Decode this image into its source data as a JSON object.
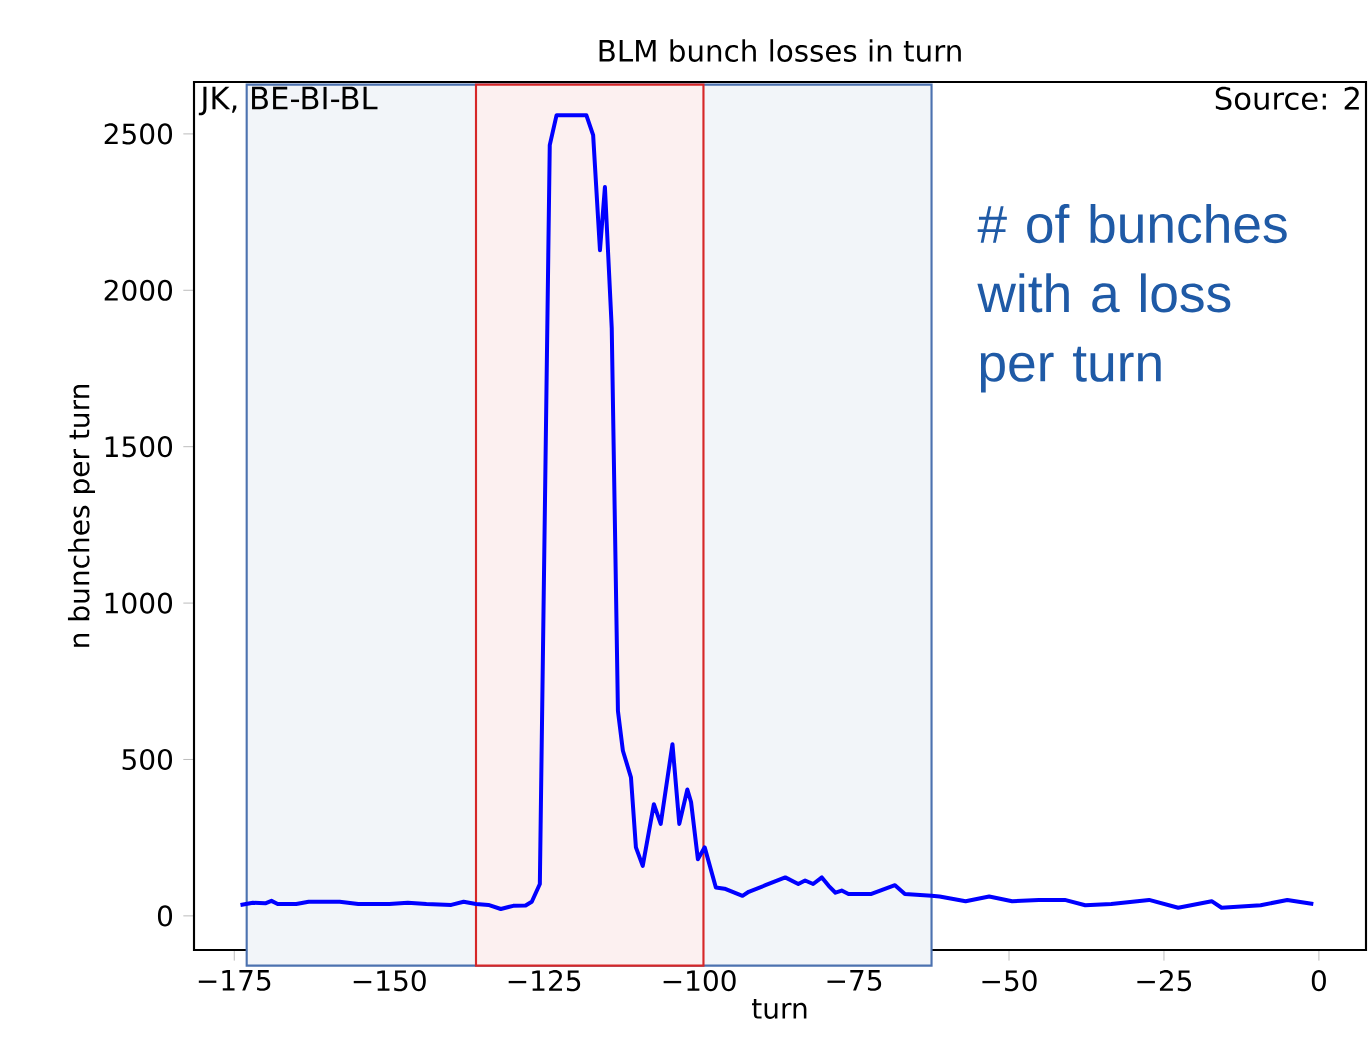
{
  "chart_data": {
    "type": "line",
    "title": "BLM bunch losses in turn",
    "xlabel": "turn",
    "ylabel": "n bunches per turn",
    "xlim": [
      -181.5,
      7.6
    ],
    "ylim": [
      -109,
      2666
    ],
    "xticks": [
      {
        "value": -175,
        "label": "−175"
      },
      {
        "value": -150,
        "label": "−150"
      },
      {
        "value": -125,
        "label": "−125"
      },
      {
        "value": -100,
        "label": "−100"
      },
      {
        "value": -75,
        "label": "−75"
      },
      {
        "value": -50,
        "label": "−50"
      },
      {
        "value": -25,
        "label": "−25"
      },
      0
    ],
    "yticks": [
      0,
      500,
      1000,
      1500,
      2000,
      2500
    ],
    "series": [
      {
        "color": "#0000ff",
        "x": [
          -174,
          -172,
          -170,
          -169,
          -168,
          -165,
          -163,
          -158,
          -155,
          -150,
          -147,
          -144,
          -140,
          -138,
          -136,
          -134,
          -132,
          -130,
          -128,
          -127,
          -125.7,
          -124.1,
          -123,
          -118.2,
          -117.1,
          -116,
          -115.2,
          -114.1,
          -113.1,
          -112.3,
          -111,
          -110.2,
          -109.1,
          -107.3,
          -106.2,
          -104.3,
          -103.2,
          -101.9,
          -101.3,
          -100.2,
          -99.1,
          -97.3,
          -95.9,
          -93,
          -92,
          -89.3,
          -86.1,
          -84,
          -82.9,
          -81.6,
          -80.2,
          -79.1,
          -78,
          -77,
          -75.9,
          -72.2,
          -68.4,
          -66.8,
          -62.5,
          -61.2,
          -57,
          -53.2,
          -49.5,
          -45.2,
          -41,
          -37.7,
          -33.5,
          -27.4,
          -22.7,
          -17.3,
          -15.7,
          -9.4,
          -5.1,
          -0.9
        ],
        "values": [
          35,
          42,
          40,
          48,
          38,
          38,
          45,
          45,
          38,
          38,
          42,
          38,
          35,
          45,
          38,
          35,
          22,
          32,
          33,
          45,
          102,
          2464,
          2560,
          2560,
          2496,
          2128,
          2330,
          1879,
          655,
          528,
          443,
          219,
          160,
          357,
          294,
          549,
          294,
          404,
          364,
          181,
          219,
          91,
          87,
          64,
          77,
          98,
          123,
          102,
          113,
          102,
          123,
          96,
          74,
          81,
          70,
          70,
          98,
          70,
          64,
          62,
          47,
          62,
          47,
          51,
          51,
          34,
          38,
          51,
          26,
          47,
          26,
          34,
          51,
          38
        ]
      }
    ],
    "bands": [
      {
        "axis": "x",
        "from": -173,
        "to": -62.5,
        "color": "#4c72b0"
      },
      {
        "axis": "x",
        "from": -136,
        "to": -99.3,
        "color": "#d62728"
      }
    ],
    "annotations": [
      "JK, BE-BI-BL",
      "Source: 2",
      "# of bunches with a loss per turn"
    ]
  }
}
